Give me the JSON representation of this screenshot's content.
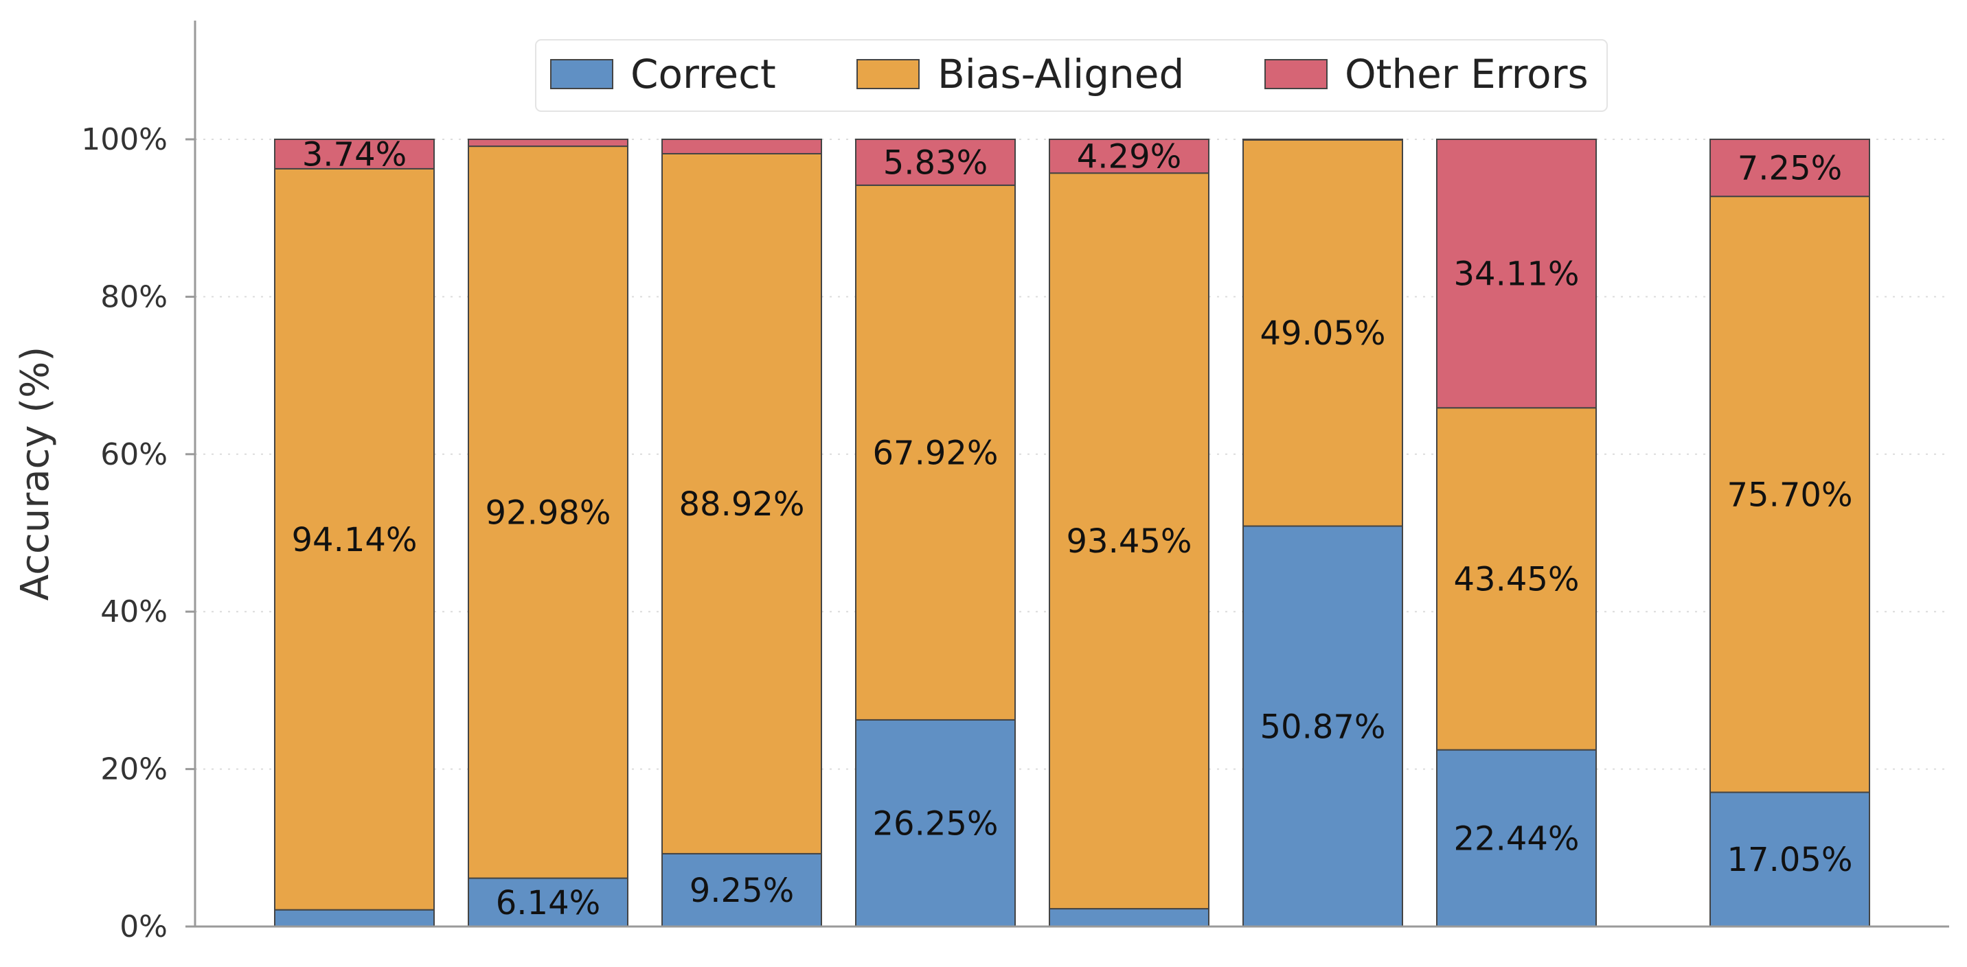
{
  "chart_data": {
    "type": "bar",
    "stacked": true,
    "xlabel": "",
    "ylabel": "Accuracy (%)",
    "ylim": [
      0,
      115
    ],
    "y_ticks": [
      0,
      20,
      40,
      60,
      80,
      100
    ],
    "y_tick_labels": [
      "0%",
      "20%",
      "40%",
      "60%",
      "80%",
      "100%"
    ],
    "grid": "horizontal dotted",
    "legend_position": "top-center",
    "categories": [
      "",
      "",
      "",
      "",
      "",
      "",
      "",
      ""
    ],
    "series": [
      {
        "name": "Correct",
        "color": "#6090C4",
        "values": [
          2.12,
          6.14,
          9.25,
          26.25,
          2.26,
          50.87,
          22.44,
          17.05
        ],
        "labels": [
          "",
          "6.14%",
          "9.25%",
          "26.25%",
          "",
          "50.87%",
          "22.44%",
          "17.05%"
        ]
      },
      {
        "name": "Bias-Aligned",
        "color": "#E8A548",
        "values": [
          94.14,
          92.98,
          88.92,
          67.92,
          93.45,
          49.05,
          43.45,
          75.7
        ],
        "labels": [
          "94.14%",
          "92.98%",
          "88.92%",
          "67.92%",
          "93.45%",
          "49.05%",
          "43.45%",
          "75.70%"
        ]
      },
      {
        "name": "Other Errors",
        "color": "#D66575",
        "values": [
          3.74,
          0.88,
          1.83,
          5.83,
          4.29,
          0.08,
          34.11,
          7.25
        ],
        "labels": [
          "3.74%",
          "",
          "",
          "5.83%",
          "4.29%",
          "",
          "34.11%",
          "7.25%"
        ]
      }
    ]
  }
}
